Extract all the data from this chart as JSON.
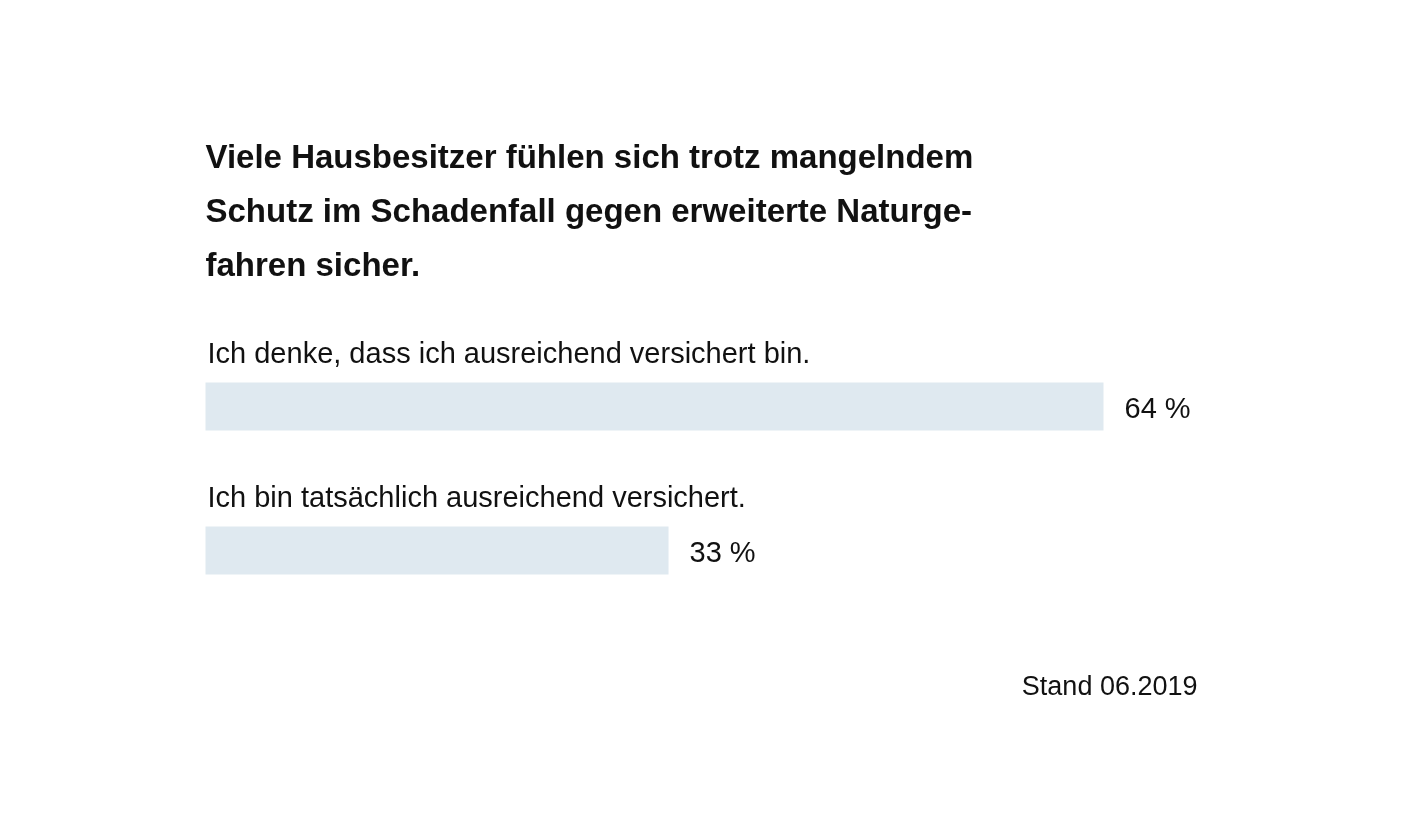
{
  "chart_data": {
    "type": "bar",
    "orientation": "horizontal",
    "title": "Viele Hausbesitzer fühlen sich trotz mangelndem\nSchutz im Schadenfall gegen erweiterte Naturge-\nfahren sicher.",
    "categories": [
      "Ich denke, dass ich ausreichend versichert bin.",
      "Ich bin tatsächlich ausreichend versichert."
    ],
    "values": [
      64,
      33
    ],
    "value_labels": [
      "64 %",
      "33 %"
    ],
    "color": "#dfe9f0",
    "annotations": [
      "Stand 06.2019"
    ]
  }
}
